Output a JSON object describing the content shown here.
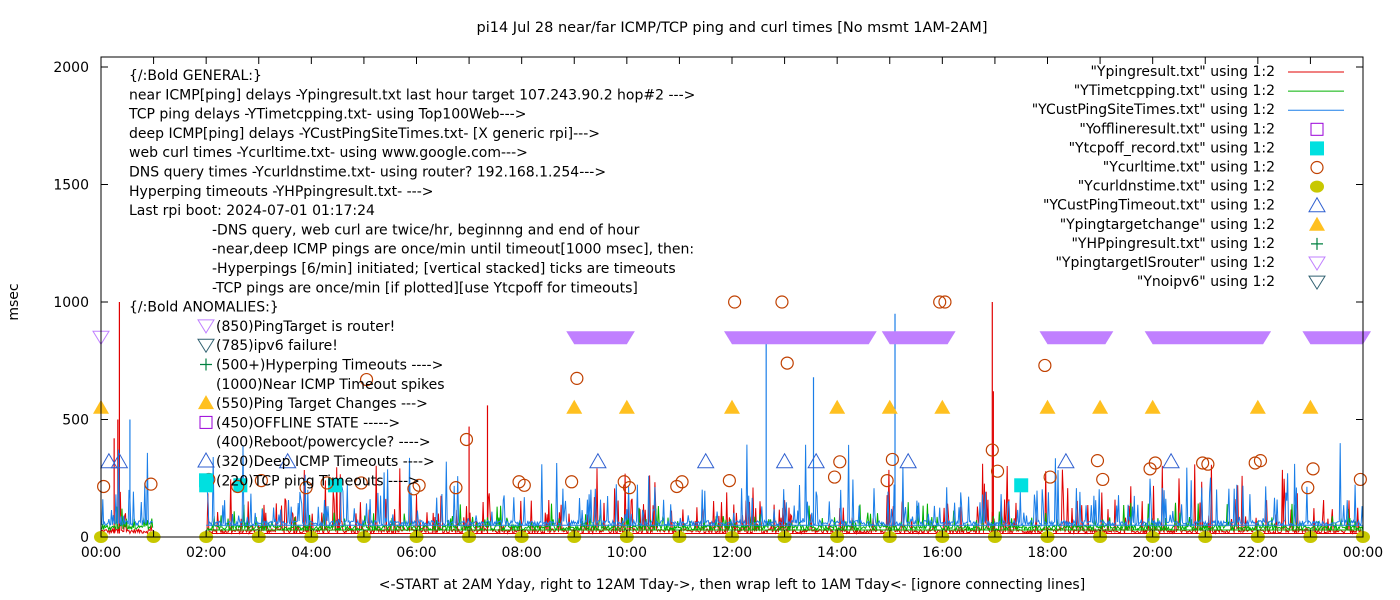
{
  "chart_data": {
    "type": "line",
    "title": "pi14 Jul 28  near/far ICMP/TCP ping and curl times [No msmt 1AM-2AM]",
    "xlabel": "<-START at 2AM Yday, right to 12AM Tday->, then wrap left to 1AM Tday<- [ignore connecting lines]",
    "ylabel": "msec",
    "xlim_hours": [
      0,
      24
    ],
    "ylim": [
      0,
      2000
    ],
    "x_ticks": [
      "00:00",
      "02:00",
      "04:00",
      "06:00",
      "08:00",
      "10:00",
      "12:00",
      "14:00",
      "16:00",
      "18:00",
      "20:00",
      "22:00",
      "00:00"
    ],
    "y_ticks": [
      0,
      500,
      1000,
      1500,
      2000
    ],
    "grid": false,
    "legend_position": "top-right",
    "notes": {
      "general_header": "{/:Bold GENERAL:}",
      "general_lines": [
        "near ICMP[ping] delays -Ypingresult.txt last hour target 107.243.90.2 hop#2 --->",
        "TCP ping delays -YTimetcpping.txt- using Top100Web--->",
        "deep ICMP[ping] delays -YCustPingSiteTimes.txt- [X generic rpi]--->",
        "web curl times -Ycurltime.txt- using www.google.com--->",
        "DNS query times -Ycurldnstime.txt- using router? 192.168.1.254--->",
        "Hyperping timeouts -YHPpingresult.txt- --->",
        "Last rpi boot: 2024-07-01 01:17:24"
      ],
      "indented_lines": [
        "-DNS query, web curl are twice/hr, beginnng and end of hour",
        "-near,deep ICMP pings are once/min until timeout[1000 msec], then:",
        "  -Hyperpings [6/min] initiated; [vertical stacked] ticks are timeouts",
        "-TCP pings are once/min [if plotted][use Ytcpoff for timeouts]"
      ],
      "anomalies_header": "{/:Bold ANOMALIES:}",
      "anomalies": [
        {
          "marker": "tri-down-violet",
          "text": "(850)PingTarget is router!"
        },
        {
          "marker": "tri-down-slate",
          "text": "(785)ipv6 failure!"
        },
        {
          "marker": "plus-green",
          "text": "(500+)Hyperping Timeouts ---->"
        },
        {
          "marker": "none",
          "text": "(1000)Near ICMP Timeout spikes"
        },
        {
          "marker": "tri-up-filled-orange",
          "text": "(550)Ping Target Changes --->"
        },
        {
          "marker": "square-violet",
          "text": "(450)OFFLINE STATE ----->"
        },
        {
          "marker": "none",
          "text": "(400)Reboot/powercycle? ---->"
        },
        {
          "marker": "tri-up-blue",
          "text": "(320)Deep ICMP Timeouts ---->"
        },
        {
          "marker": "square-filled-cyan",
          "text": "(220)TCP ping Timeouts ---->"
        }
      ]
    },
    "legend": [
      {
        "label": "\"Ypingresult.txt\" using 1:2",
        "style": "line",
        "color": "#e00000"
      },
      {
        "label": "\"YTimetcpping.txt\" using 1:2",
        "style": "line",
        "color": "#00b000"
      },
      {
        "label": "\"YCustPingSiteTimes.txt\" using 1:2",
        "style": "line",
        "color": "#1a7ee8"
      },
      {
        "label": "\"Yofflineresult.txt\" using 1:2",
        "style": "square-open",
        "color": "#9a00d8"
      },
      {
        "label": "\"Ytcpoff_record.txt\" using 1:2",
        "style": "square-filled",
        "color": "#00e0e0"
      },
      {
        "label": "\"Ycurltime.txt\" using 1:2",
        "style": "circle-open",
        "color": "#c04000"
      },
      {
        "label": "\"Ycurldnstime.txt\" using 1:2",
        "style": "circle-filled",
        "color": "#c8c800"
      },
      {
        "label": "\"YCustPingTimeout.txt\" using 1:2",
        "style": "tri-up-open",
        "color": "#3060d0"
      },
      {
        "label": "\"Ypingtargetchange\" using 1:2",
        "style": "tri-up-filled",
        "color": "#ffc020"
      },
      {
        "label": "\"YHPpingresult.txt\" using 1:2",
        "style": "plus",
        "color": "#008040"
      },
      {
        "label": "\"YpingtargetISrouter\" using 1:2",
        "style": "tri-down-open",
        "color": "#c080ff"
      },
      {
        "label": "\"Ynoipv6\" using 1:2",
        "style": "tri-down-open",
        "color": "#306070"
      }
    ],
    "series": [
      {
        "name": "Ypingresult.txt",
        "kind": "spiky-line",
        "baseline_msec": 15,
        "typical_max_msec": 300,
        "spikes": [
          [
            0.35,
            1000
          ],
          [
            0.32,
            500
          ],
          [
            0.25,
            420
          ],
          [
            16.95,
            1000
          ],
          [
            16.97,
            620
          ],
          [
            7.35,
            560
          ],
          [
            7.0,
            470
          ]
        ]
      },
      {
        "name": "YTimetcpping.txt",
        "kind": "spiky-line",
        "baseline_msec": 30,
        "typical_max_msec": 120
      },
      {
        "name": "YCustPingSiteTimes.txt",
        "kind": "spiky-line",
        "baseline_msec": 50,
        "typical_max_msec": 350,
        "spikes": [
          [
            12.65,
            870
          ],
          [
            15.1,
            950
          ],
          [
            13.55,
            680
          ],
          [
            0.55,
            500
          ]
        ]
      },
      {
        "name": "Ytcpoff_record.txt",
        "kind": "points",
        "x_hours": [
          2.0,
          2.65,
          4.45,
          17.5
        ],
        "y": 220
      },
      {
        "name": "Ycurltime.txt",
        "kind": "points",
        "points": [
          [
            0.05,
            215
          ],
          [
            0.95,
            225
          ],
          [
            2.05,
            245
          ],
          [
            2.6,
            215
          ],
          [
            3.05,
            240
          ],
          [
            3.9,
            210
          ],
          [
            4.3,
            230
          ],
          [
            4.95,
            230
          ],
          [
            5.05,
            670
          ],
          [
            5.95,
            205
          ],
          [
            6.05,
            220
          ],
          [
            6.75,
            210
          ],
          [
            6.95,
            415
          ],
          [
            7.95,
            235
          ],
          [
            8.05,
            220
          ],
          [
            8.95,
            235
          ],
          [
            9.05,
            675
          ],
          [
            9.95,
            235
          ],
          [
            10.05,
            210
          ],
          [
            10.95,
            215
          ],
          [
            11.05,
            235
          ],
          [
            11.95,
            240
          ],
          [
            12.05,
            1000
          ],
          [
            12.95,
            1000
          ],
          [
            13.05,
            740
          ],
          [
            13.95,
            255
          ],
          [
            14.05,
            320
          ],
          [
            14.95,
            240
          ],
          [
            15.05,
            330
          ],
          [
            15.95,
            1000
          ],
          [
            16.05,
            1000
          ],
          [
            16.95,
            370
          ],
          [
            17.05,
            280
          ],
          [
            17.95,
            730
          ],
          [
            18.05,
            255
          ],
          [
            18.95,
            325
          ],
          [
            19.05,
            245
          ],
          [
            19.95,
            290
          ],
          [
            20.05,
            315
          ],
          [
            20.95,
            315
          ],
          [
            21.05,
            310
          ],
          [
            21.95,
            315
          ],
          [
            22.05,
            325
          ],
          [
            22.95,
            210
          ],
          [
            23.05,
            290
          ],
          [
            23.95,
            245
          ]
        ]
      },
      {
        "name": "Ycurldnstime.txt",
        "kind": "points",
        "x_hours_every": 1,
        "y": 0,
        "x_hours": [
          0,
          1,
          2,
          3,
          4,
          5,
          6,
          7,
          8,
          9,
          10,
          11,
          12,
          13,
          14,
          15,
          16,
          17,
          18,
          19,
          20,
          21,
          22,
          23,
          24
        ]
      },
      {
        "name": "YCustPingTimeout.txt",
        "kind": "points",
        "x_hours": [
          0.15,
          0.35,
          3.55,
          9.45,
          11.5,
          13.0,
          13.6,
          15.35,
          18.35,
          20.35
        ],
        "y": 320
      },
      {
        "name": "Ypingtargetchange",
        "kind": "points",
        "x_hours": [
          0,
          9,
          10,
          12,
          14,
          15,
          16,
          18,
          19,
          20,
          22,
          23
        ],
        "y": 550
      },
      {
        "name": "YpingtargetISrouter",
        "kind": "point-bands",
        "y": 850,
        "single_x_hours": [
          0
        ],
        "bands_hours": [
          [
            9.0,
            10.0
          ],
          [
            12.0,
            14.6
          ],
          [
            15.0,
            16.1
          ],
          [
            18.0,
            19.1
          ],
          [
            20.0,
            22.1
          ],
          [
            23.0,
            24.0
          ]
        ]
      }
    ]
  }
}
